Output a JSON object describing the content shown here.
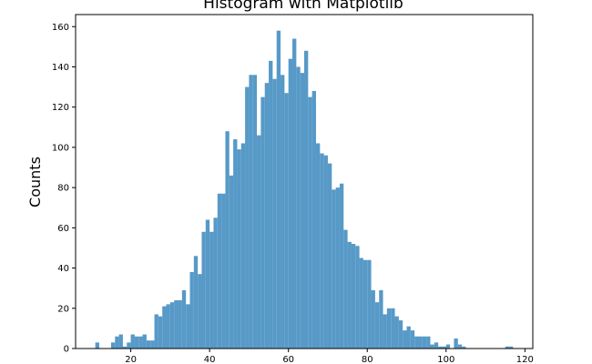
{
  "chart_data": {
    "type": "bar",
    "title": "Histogram with Matplotlib",
    "xlabel": "",
    "ylabel": "Counts",
    "xlim": [
      6,
      122
    ],
    "ylim": [
      0,
      166
    ],
    "grid": false,
    "bar_color": "#5799c7",
    "bin_width": 1,
    "x_ticks": [
      20,
      40,
      60,
      80,
      100,
      120
    ],
    "y_ticks": [
      0,
      20,
      40,
      60,
      80,
      100,
      120,
      140,
      160
    ],
    "bins": [
      [
        11,
        3
      ],
      [
        15,
        3
      ],
      [
        16,
        6
      ],
      [
        17,
        7
      ],
      [
        18,
        1
      ],
      [
        19,
        3
      ],
      [
        20,
        7
      ],
      [
        21,
        6
      ],
      [
        22,
        6
      ],
      [
        23,
        7
      ],
      [
        24,
        4
      ],
      [
        25,
        4
      ],
      [
        26,
        17
      ],
      [
        27,
        16
      ],
      [
        28,
        21
      ],
      [
        29,
        22
      ],
      [
        30,
        23
      ],
      [
        31,
        24
      ],
      [
        32,
        24
      ],
      [
        33,
        29
      ],
      [
        34,
        22
      ],
      [
        35,
        38
      ],
      [
        36,
        46
      ],
      [
        37,
        37
      ],
      [
        38,
        58
      ],
      [
        39,
        64
      ],
      [
        40,
        58
      ],
      [
        41,
        65
      ],
      [
        42,
        77
      ],
      [
        43,
        77
      ],
      [
        44,
        108
      ],
      [
        45,
        86
      ],
      [
        46,
        104
      ],
      [
        47,
        99
      ],
      [
        48,
        102
      ],
      [
        49,
        130
      ],
      [
        50,
        136
      ],
      [
        51,
        136
      ],
      [
        52,
        106
      ],
      [
        53,
        125
      ],
      [
        54,
        132
      ],
      [
        55,
        143
      ],
      [
        56,
        134
      ],
      [
        57,
        158
      ],
      [
        58,
        136
      ],
      [
        59,
        127
      ],
      [
        60,
        144
      ],
      [
        61,
        154
      ],
      [
        62,
        140
      ],
      [
        63,
        137
      ],
      [
        64,
        148
      ],
      [
        65,
        125
      ],
      [
        66,
        128
      ],
      [
        67,
        102
      ],
      [
        68,
        97
      ],
      [
        69,
        96
      ],
      [
        70,
        92
      ],
      [
        71,
        79
      ],
      [
        72,
        80
      ],
      [
        73,
        82
      ],
      [
        74,
        59
      ],
      [
        75,
        53
      ],
      [
        76,
        52
      ],
      [
        77,
        51
      ],
      [
        78,
        45
      ],
      [
        79,
        44
      ],
      [
        80,
        44
      ],
      [
        81,
        29
      ],
      [
        82,
        23
      ],
      [
        83,
        29
      ],
      [
        84,
        17
      ],
      [
        85,
        20
      ],
      [
        86,
        20
      ],
      [
        87,
        16
      ],
      [
        88,
        14
      ],
      [
        89,
        9
      ],
      [
        90,
        11
      ],
      [
        91,
        9
      ],
      [
        92,
        6
      ],
      [
        93,
        6
      ],
      [
        94,
        6
      ],
      [
        95,
        6
      ],
      [
        96,
        2
      ],
      [
        97,
        3
      ],
      [
        98,
        1
      ],
      [
        99,
        1
      ],
      [
        100,
        2
      ],
      [
        102,
        5
      ],
      [
        103,
        2
      ],
      [
        104,
        1
      ],
      [
        115,
        1
      ],
      [
        116,
        1
      ]
    ]
  }
}
